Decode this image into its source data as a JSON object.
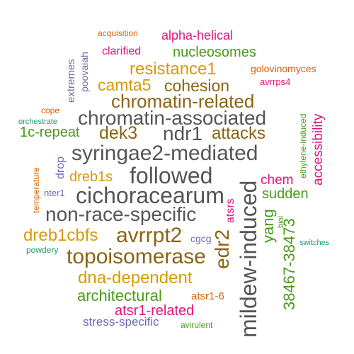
{
  "words": {
    "acquisition": "acquisition",
    "alpha_helical": "alpha-helical",
    "clarified": "clarified",
    "nucleosomes": "nucleosomes",
    "extremes": "extremes",
    "poovaiah": "poovaiah",
    "resistance1": "resistance1",
    "golovinomyces": "golovinomyces",
    "camta5": "camta5",
    "cohesion": "cohesion",
    "avrrps4": "avrrps4",
    "chromatin_related": "chromatin-related",
    "cope": "cope",
    "chromatin_associated": "chromatin-associated",
    "orchestrate": "orchestrate",
    "accessibility": "accessibility",
    "ethylene_induced": "ethylene-induced",
    "c1_repeat": "1c-repeat",
    "dek3": "dek3",
    "ndr1": "ndr1",
    "attacks": "attacks",
    "syringae2_mediated": "syringae2-mediated",
    "drop": "drop",
    "temperature": "temperature",
    "dreb1s": "dreb1s",
    "followed": "followed",
    "mildew_induced": "mildew-induced",
    "chem": "chem",
    "nter1": "nter1",
    "cichoracearum": "cichoracearum",
    "sudden": "sudden",
    "non_race_specific": "non-race-specific",
    "atsrs": "atsrs",
    "yang": "yang",
    "biol": "biol",
    "n38467_38473": "38467-38473",
    "dreb1cbfs": "dreb1cbfs",
    "avrrpt2": "avrrpt2",
    "cgcg": "cgcg",
    "edr2": "edr2",
    "powdery": "powdery",
    "topoisomerase": "topoisomerase",
    "switches": "switches",
    "dna_dependent": "dna-dependent",
    "architectural": "architectural",
    "atsr1_6": "atsr1-6",
    "atsr1_related": "atsr1-related",
    "stress_specific": "stress-specific",
    "avirulent": "avirulent"
  },
  "colors": {
    "orange": "#d95f02",
    "green": "#4a9a18",
    "magenta": "#e0147e",
    "gray": "#555555",
    "brown": "#8a6414",
    "gold": "#d79a06",
    "purple": "#6c6cb0",
    "teal": "#1a9a72"
  }
}
